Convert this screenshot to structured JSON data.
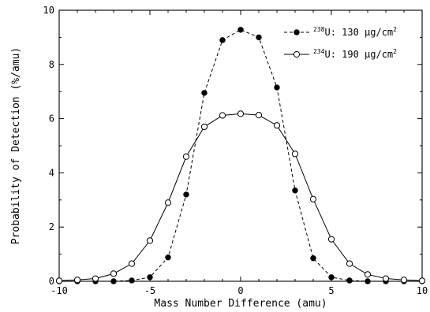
{
  "chart_data": {
    "type": "line",
    "xlabel": "Mass Number Difference (amu)",
    "ylabel": "Probability of Detection (%/amu)",
    "xlim": [
      -10,
      10
    ],
    "ylim": [
      0,
      10
    ],
    "x_ticks": [
      "-10",
      "-5",
      "0",
      "5",
      "10"
    ],
    "y_ticks": [
      "0",
      "2",
      "4",
      "6",
      "8",
      "10"
    ],
    "grid": false,
    "legend_position": "top-right",
    "series": [
      {
        "name": "238U: 130 μg/cm2",
        "legend_isotope": "238",
        "legend_element": "U",
        "legend_amount": ": 130 μg/cm",
        "legend_unit_power": "2",
        "marker": "filled-circle",
        "line": "dashed",
        "x": [
          -10,
          -9,
          -8,
          -7,
          -6,
          -5,
          -4,
          -3,
          -2,
          -1,
          0,
          1,
          2,
          3,
          4,
          5,
          6,
          7,
          8,
          9,
          10
        ],
        "y": [
          0,
          0,
          0,
          0,
          0.03,
          0.15,
          0.88,
          3.2,
          6.95,
          8.9,
          9.28,
          9.0,
          7.15,
          3.35,
          0.85,
          0.15,
          0.03,
          0,
          0,
          0,
          0
        ]
      },
      {
        "name": "234U: 190 μg/cm2",
        "legend_isotope": "234",
        "legend_element": "U",
        "legend_amount": ": 190 μg/cm",
        "legend_unit_power": "2",
        "marker": "open-circle",
        "line": "solid",
        "x": [
          -10,
          -9,
          -8,
          -7,
          -6,
          -5,
          -4,
          -3,
          -2,
          -1,
          0,
          1,
          2,
          3,
          4,
          5,
          6,
          7,
          8,
          9,
          10
        ],
        "y": [
          0.02,
          0.05,
          0.1,
          0.28,
          0.65,
          1.5,
          2.9,
          4.6,
          5.7,
          6.12,
          6.18,
          6.13,
          5.75,
          4.7,
          3.03,
          1.55,
          0.65,
          0.25,
          0.1,
          0.05,
          0.02
        ]
      }
    ]
  }
}
